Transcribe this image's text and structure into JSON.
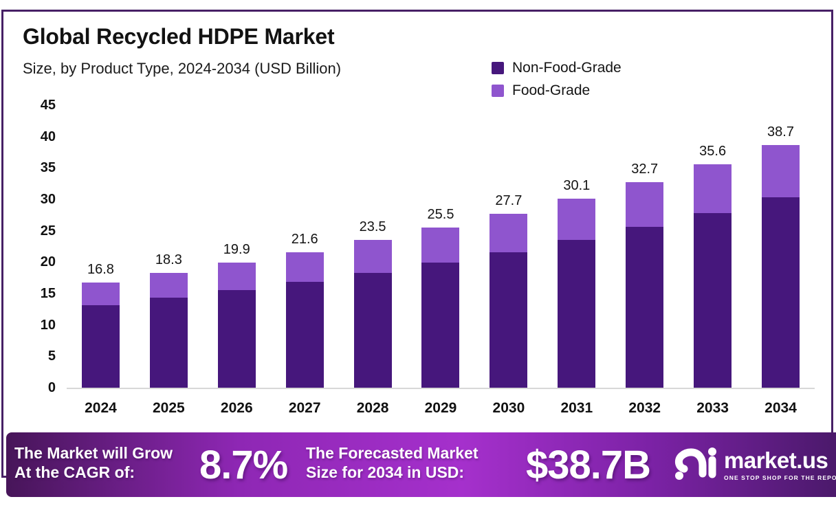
{
  "header": {
    "title": "Global Recycled HDPE Market",
    "subtitle": "Size, by Product Type, 2024-2034 (USD Billion)"
  },
  "chart_data": {
    "type": "bar",
    "stacked": true,
    "title": "Global Recycled HDPE Market Size, by Product Type, 2024-2034 (USD Billion)",
    "categories": [
      "2024",
      "2025",
      "2026",
      "2027",
      "2028",
      "2029",
      "2030",
      "2031",
      "2032",
      "2033",
      "2034"
    ],
    "series": [
      {
        "name": "Non-Food-Grade",
        "color": "#46177c",
        "values": [
          13.1,
          14.3,
          15.5,
          16.9,
          18.3,
          19.9,
          21.6,
          23.5,
          25.6,
          27.8,
          30.3
        ]
      },
      {
        "name": "Food-Grade",
        "color": "#8f55ce",
        "values": [
          3.7,
          4.0,
          4.4,
          4.7,
          5.2,
          5.6,
          6.1,
          6.6,
          7.1,
          7.8,
          8.4
        ]
      }
    ],
    "totals": [
      16.8,
      18.3,
      19.9,
      21.6,
      23.5,
      25.5,
      27.7,
      30.1,
      32.7,
      35.6,
      38.7
    ],
    "total_labels": [
      "16.8",
      "18.3",
      "19.9",
      "21.6",
      "23.5",
      "25.5",
      "27.7",
      "30.1",
      "32.7",
      "35.6",
      "38.7"
    ],
    "yticks": [
      0,
      5,
      10,
      15,
      20,
      25,
      30,
      35,
      40,
      45
    ],
    "ylim": [
      0,
      45
    ],
    "xlabel": "",
    "ylabel": "",
    "grid": false,
    "legend_position": "top-right"
  },
  "footer": {
    "left_line1": "The Market will Grow",
    "left_line2": "At the CAGR of:",
    "cagr_value": "8.7%",
    "mid_line1": "The Forecasted Market",
    "mid_line2": "Size for 2034 in USD:",
    "forecast_value": "$38.7B",
    "brand": "market.us",
    "tagline": "ONE STOP SHOP FOR THE REPORTS"
  },
  "colors": {
    "bar_dark": "#46177c",
    "bar_light": "#8f55ce",
    "card_border": "#472066",
    "baseline": "#d8d8d8",
    "banner_left": "#471559",
    "banner_mid": "#a530cc",
    "banner_right": "#4b196b",
    "text_white": "#ffffff"
  }
}
